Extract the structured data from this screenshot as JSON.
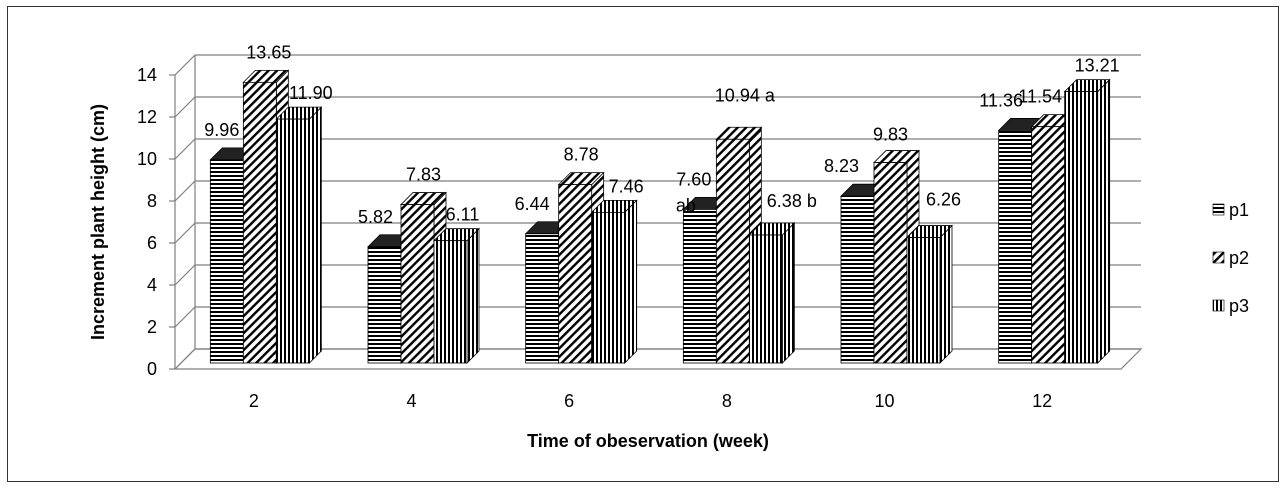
{
  "chart_data": {
    "type": "bar",
    "style": "3d-clustered-column",
    "title": "",
    "xlabel": "Time of obeservation (week)",
    "ylabel": "Increment plant height  (cm)",
    "ylim": [
      0,
      14
    ],
    "yticks": [
      0,
      2,
      4,
      6,
      8,
      10,
      12,
      14
    ],
    "grid": true,
    "legend_position": "right",
    "categories": [
      "2",
      "4",
      "6",
      "8",
      "10",
      "12"
    ],
    "series": [
      {
        "name": "p1",
        "pattern": "horizontal-lines",
        "values": [
          9.96,
          5.82,
          6.44,
          7.6,
          8.23,
          11.36
        ],
        "labels": [
          "9.96",
          "5.82",
          "6.44",
          "7.60",
          "8.23",
          "11.36"
        ],
        "annotations": [
          "",
          "",
          "",
          "ab",
          "",
          ""
        ]
      },
      {
        "name": "p2",
        "pattern": "diagonal-lines",
        "values": [
          13.65,
          7.83,
          8.78,
          10.94,
          9.83,
          11.54
        ],
        "labels": [
          "13.65",
          "7.83",
          "8.78",
          "10.94 a",
          "9.83",
          "11.54"
        ],
        "annotations": [
          "",
          "",
          "",
          "",
          "",
          ""
        ]
      },
      {
        "name": "p3",
        "pattern": "vertical-lines",
        "values": [
          11.9,
          6.11,
          7.46,
          6.38,
          6.26,
          13.21
        ],
        "labels": [
          "11.90",
          "6.11",
          "7.46",
          "6.38 b",
          "6.26",
          "13.21"
        ],
        "annotations": [
          "",
          "",
          "",
          "",
          "",
          ""
        ]
      }
    ],
    "colors": {
      "bar_fill": "#ffffff",
      "bar_line": "#000000",
      "grid": "#7f7f7f",
      "axis": "#7f7f7f"
    }
  }
}
